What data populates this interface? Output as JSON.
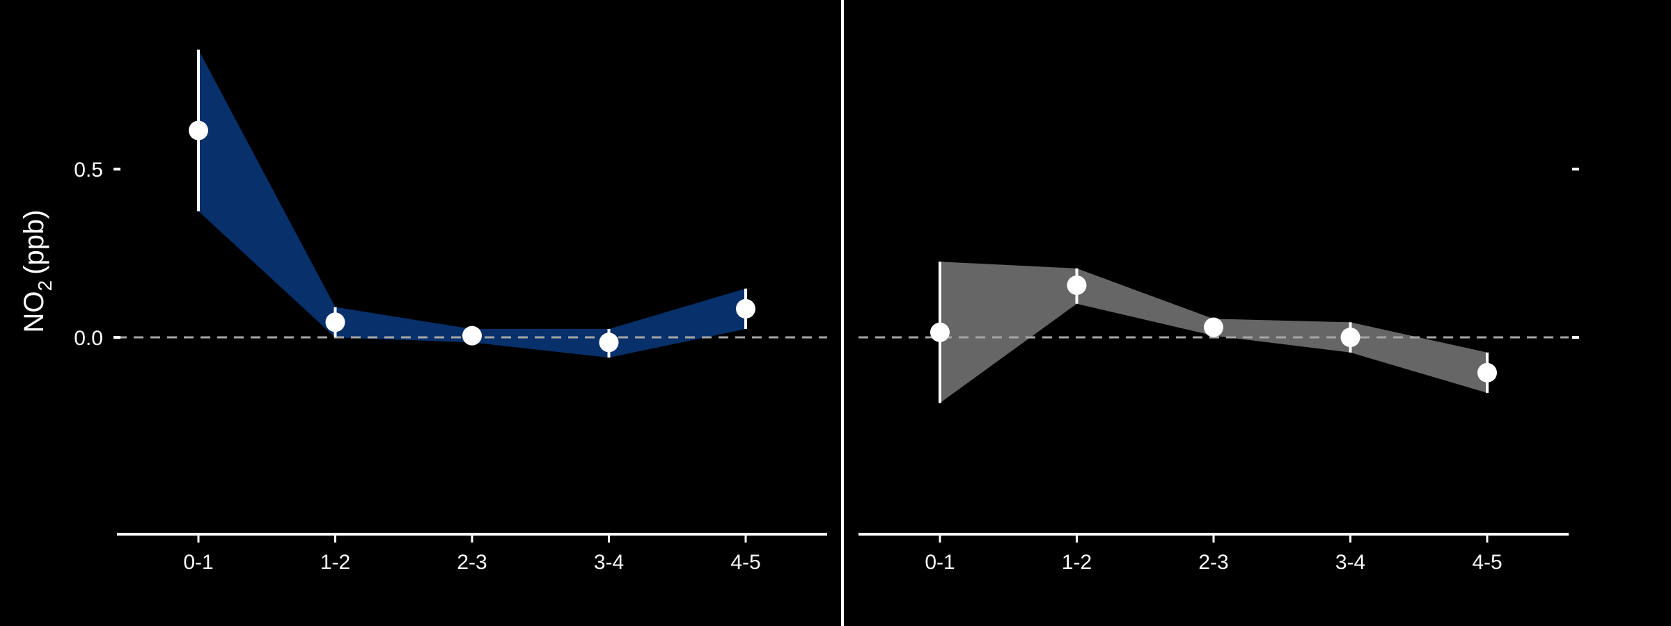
{
  "figure": {
    "ylabel_main": "NO",
    "ylabel_sub": "2",
    "ylabel_unit": "(ppb)",
    "background": "#000000",
    "foreground": "#ffffff",
    "reference_line_color": "#a6a6a6"
  },
  "chart_data": [
    {
      "type": "line",
      "title": "",
      "xlabel": "",
      "ylabel": "NO2 (ppb)",
      "categories": [
        "0-1",
        "1-2",
        "2-3",
        "3-4",
        "4-5"
      ],
      "yticks": [
        0.0,
        0.5
      ],
      "ytick_labels": [
        "0.0",
        "0.5"
      ],
      "show_ytick_labels": true,
      "ylim": [
        -0.465,
        0.92
      ],
      "reference_line": 0,
      "ribbon_color": "#08306b",
      "series": [
        {
          "values": [
            0.615,
            0.045,
            0.005,
            -0.015,
            0.085
          ],
          "lower": [
            0.375,
            0.0,
            -0.015,
            -0.06,
            0.025
          ],
          "upper": [
            0.855,
            0.09,
            0.025,
            0.025,
            0.145
          ]
        }
      ]
    },
    {
      "type": "line",
      "title": "",
      "xlabel": "",
      "ylabel": "",
      "categories": [
        "0-1",
        "1-2",
        "2-3",
        "3-4",
        "4-5"
      ],
      "yticks": [
        0.0,
        0.5
      ],
      "ytick_labels": [
        "",
        ""
      ],
      "show_ytick_labels": false,
      "ylim": [
        -0.465,
        0.92
      ],
      "reference_line": 0,
      "ribbon_color": "#666666",
      "series": [
        {
          "values": [
            0.015,
            0.155,
            0.03,
            0.0,
            -0.105
          ],
          "lower": [
            -0.195,
            0.1,
            0.005,
            -0.045,
            -0.165
          ],
          "upper": [
            0.225,
            0.205,
            0.055,
            0.045,
            -0.045
          ]
        }
      ]
    }
  ]
}
